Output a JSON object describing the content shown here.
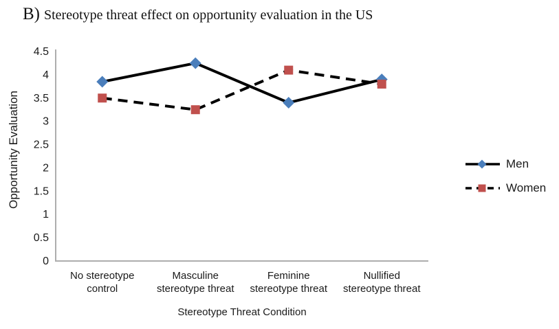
{
  "title": {
    "panel": "B)",
    "text": "Stereotype threat effect on opportunity evaluation in the US"
  },
  "chart_data": {
    "type": "line",
    "title": "B) Stereotype threat effect on opportunity evaluation in the US",
    "xlabel": "Stereotype Threat Condition",
    "ylabel": "Opportunity Evaluation",
    "ylim": [
      0,
      4.5
    ],
    "yticks": [
      0,
      0.5,
      1,
      1.5,
      2,
      2.5,
      3,
      3.5,
      4,
      4.5
    ],
    "grid": false,
    "legend_position": "right",
    "categories": [
      "No stereotype control",
      "Masculine stereotype threat",
      "Feminine stereotype threat",
      "Nullified stereotype threat"
    ],
    "category_label_lines": [
      [
        "No stereotype",
        "control"
      ],
      [
        "Masculine",
        "stereotype threat"
      ],
      [
        "Feminine",
        "stereotype threat"
      ],
      [
        "Nullified",
        "stereotype threat"
      ]
    ],
    "series": [
      {
        "name": "Men",
        "values": [
          3.85,
          4.25,
          3.4,
          3.9
        ],
        "line_style": "solid",
        "line_color": "#000000",
        "marker": "diamond",
        "marker_color": "#4a7ebb"
      },
      {
        "name": "Women",
        "values": [
          3.5,
          3.25,
          4.1,
          3.8
        ],
        "line_style": "dashed",
        "line_color": "#000000",
        "marker": "square",
        "marker_color": "#c0504d"
      }
    ],
    "axis_color": "#adadad"
  }
}
